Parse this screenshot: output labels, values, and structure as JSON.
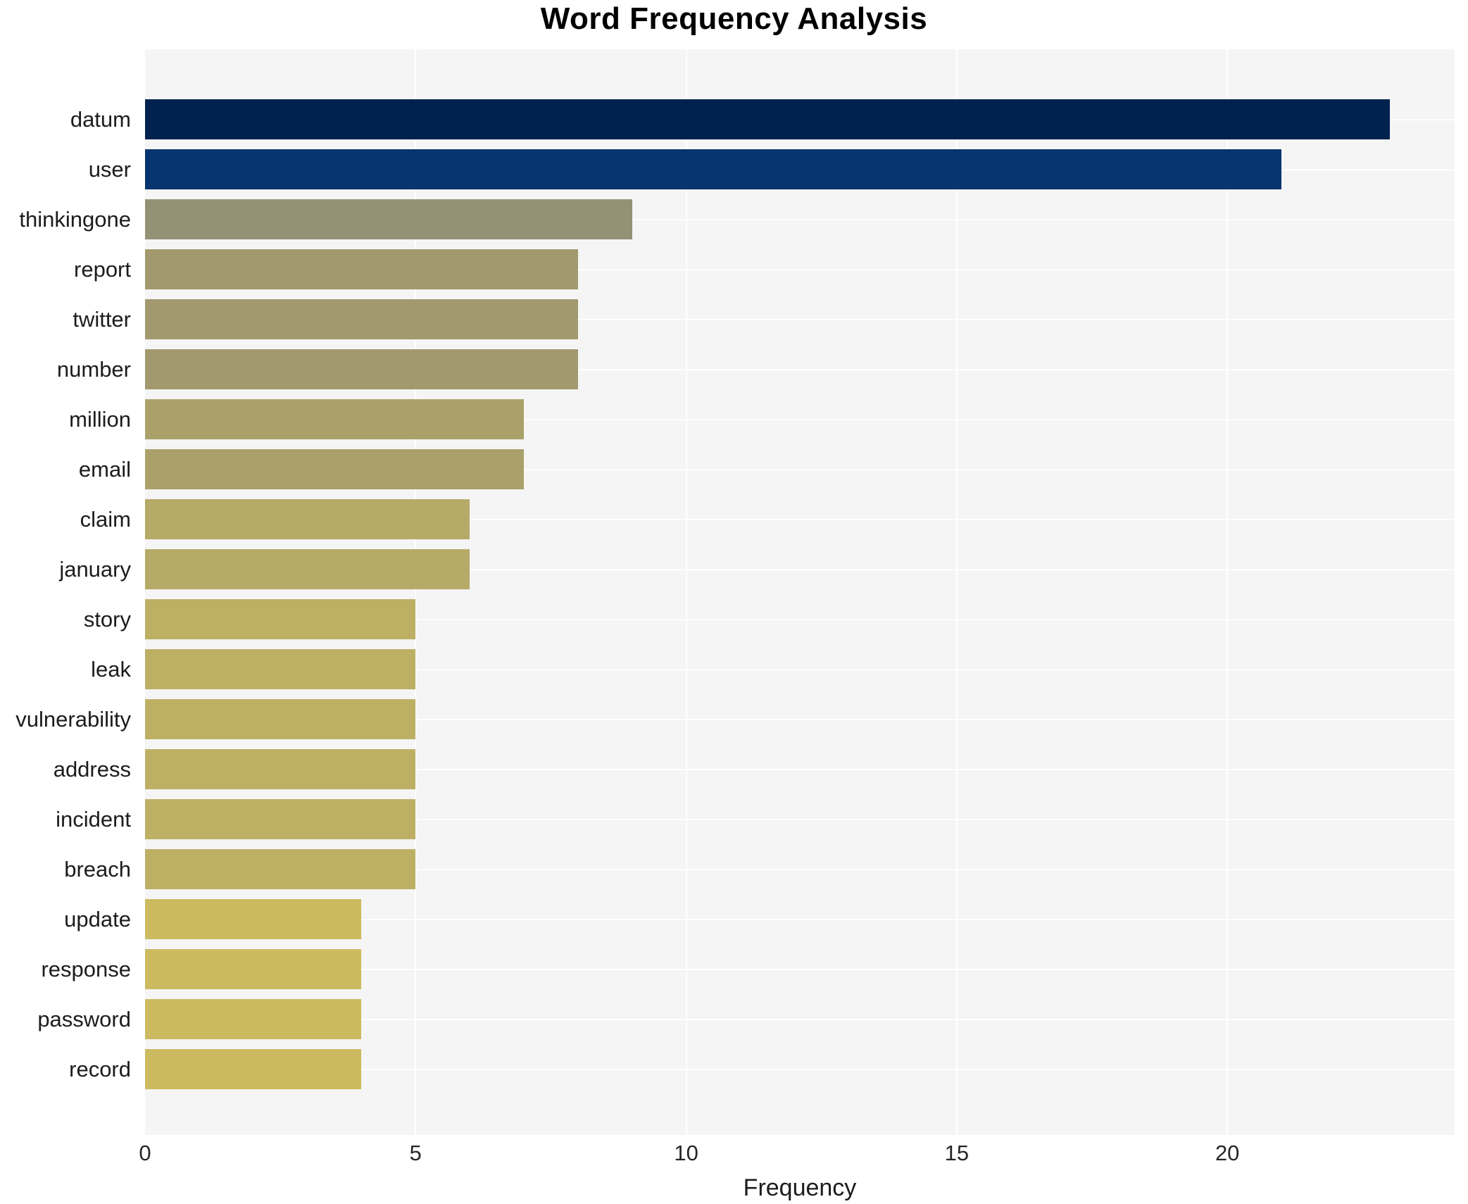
{
  "chart_data": {
    "type": "bar",
    "orientation": "horizontal",
    "title": "Word Frequency Analysis",
    "xlabel": "Frequency",
    "ylabel": "",
    "categories": [
      "datum",
      "user",
      "thinkingone",
      "report",
      "twitter",
      "number",
      "million",
      "email",
      "claim",
      "january",
      "story",
      "leak",
      "vulnerability",
      "address",
      "incident",
      "breach",
      "update",
      "response",
      "password",
      "record"
    ],
    "values": [
      23,
      21,
      9,
      8,
      8,
      8,
      7,
      7,
      6,
      6,
      5,
      5,
      5,
      5,
      5,
      5,
      4,
      4,
      4,
      4
    ],
    "bar_colors": [
      "#00224e",
      "#07356f",
      "#949175",
      "#a29a6e",
      "#a29a6e",
      "#a29a6e",
      "#aaa16a",
      "#aaa16a",
      "#b5aa67",
      "#b5aa67",
      "#bdb065",
      "#bdb065",
      "#bdb065",
      "#bdb065",
      "#bdb065",
      "#bdb065",
      "#ccba60",
      "#ccba60",
      "#ccba60",
      "#ccba60"
    ],
    "xlim": [
      0,
      24.2
    ],
    "xticks": [
      0,
      5,
      10,
      15,
      20
    ],
    "grid": true,
    "legend": false,
    "plot_background": "#f5f5f6",
    "grid_color": "#ffffff",
    "title_color": "#000000",
    "tick_color": "#262626"
  }
}
